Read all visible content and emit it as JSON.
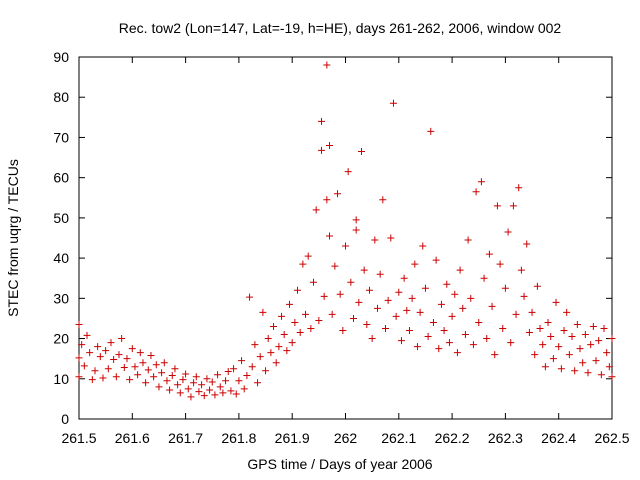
{
  "chart_data": {
    "type": "scatter",
    "title": "Rec. tow2 (Lon=147, Lat=-19, h=HE), days 261-262, 2006, window 002",
    "xlabel": "GPS time / Days of year 2006",
    "ylabel": "STEC from uqrg / TECUs",
    "xlim": [
      261.5,
      262.5
    ],
    "ylim": [
      0,
      90
    ],
    "xticks": [
      "261.5",
      "261.6",
      "261.7",
      "261.8",
      "261.9",
      "262",
      "262.1",
      "262.2",
      "262.3",
      "262.4",
      "262.5"
    ],
    "yticks": [
      "0",
      "10",
      "20",
      "30",
      "40",
      "50",
      "60",
      "70",
      "80",
      "90"
    ],
    "marker": "+",
    "marker_color": "#cc0000",
    "grid": false,
    "series": [
      {
        "points": [
          [
            261.5,
            23.5
          ],
          [
            261.5,
            15.2
          ],
          [
            261.5,
            10.5
          ],
          [
            261.505,
            18.5
          ],
          [
            261.51,
            13.2
          ],
          [
            261.515,
            20.8
          ],
          [
            261.52,
            16.5
          ],
          [
            261.525,
            9.8
          ],
          [
            261.53,
            12.0
          ],
          [
            261.535,
            18.0
          ],
          [
            261.54,
            15.5
          ],
          [
            261.545,
            10.2
          ],
          [
            261.55,
            17.0
          ],
          [
            261.555,
            12.5
          ],
          [
            261.56,
            19.0
          ],
          [
            261.565,
            14.8
          ],
          [
            261.57,
            10.5
          ],
          [
            261.575,
            16.0
          ],
          [
            261.58,
            20.0
          ],
          [
            261.585,
            12.8
          ],
          [
            261.59,
            15.0
          ],
          [
            261.595,
            9.8
          ],
          [
            261.6,
            17.5
          ],
          [
            261.605,
            13.0
          ],
          [
            261.61,
            11.0
          ],
          [
            261.615,
            16.5
          ],
          [
            261.62,
            14.0
          ],
          [
            261.625,
            9.0
          ],
          [
            261.63,
            12.2
          ],
          [
            261.635,
            15.8
          ],
          [
            261.64,
            10.5
          ],
          [
            261.645,
            13.5
          ],
          [
            261.65,
            8.0
          ],
          [
            261.655,
            11.5
          ],
          [
            261.66,
            14.0
          ],
          [
            261.665,
            9.5
          ],
          [
            261.67,
            7.2
          ],
          [
            261.675,
            10.8
          ],
          [
            261.68,
            12.5
          ],
          [
            261.685,
            8.5
          ],
          [
            261.69,
            6.5
          ],
          [
            261.695,
            9.8
          ],
          [
            261.7,
            11.2
          ],
          [
            261.705,
            7.5
          ],
          [
            261.71,
            5.5
          ],
          [
            261.715,
            9.0
          ],
          [
            261.72,
            10.5
          ],
          [
            261.725,
            6.8
          ],
          [
            261.73,
            8.5
          ],
          [
            261.735,
            5.8
          ],
          [
            261.74,
            10.0
          ],
          [
            261.745,
            7.2
          ],
          [
            261.75,
            9.2
          ],
          [
            261.755,
            6.0
          ],
          [
            261.76,
            11.0
          ],
          [
            261.765,
            8.0
          ],
          [
            261.77,
            6.5
          ],
          [
            261.775,
            9.5
          ],
          [
            261.78,
            11.8
          ],
          [
            261.785,
            7.0
          ],
          [
            261.79,
            12.5
          ],
          [
            261.795,
            6.2
          ],
          [
            261.8,
            9.5
          ],
          [
            261.805,
            14.5
          ],
          [
            261.81,
            7.5
          ],
          [
            261.815,
            10.8
          ],
          [
            261.82,
            30.3
          ],
          [
            261.825,
            13.0
          ],
          [
            261.83,
            18.5
          ],
          [
            261.835,
            9.0
          ],
          [
            261.84,
            15.5
          ],
          [
            261.845,
            26.5
          ],
          [
            261.85,
            12.0
          ],
          [
            261.855,
            20.0
          ],
          [
            261.86,
            16.5
          ],
          [
            261.865,
            23.0
          ],
          [
            261.87,
            14.0
          ],
          [
            261.875,
            18.0
          ],
          [
            261.88,
            25.5
          ],
          [
            261.885,
            21.0
          ],
          [
            261.89,
            17.0
          ],
          [
            261.895,
            28.5
          ],
          [
            261.9,
            19.0
          ],
          [
            261.905,
            24.0
          ],
          [
            261.91,
            32.0
          ],
          [
            261.915,
            21.5
          ],
          [
            261.92,
            38.5
          ],
          [
            261.925,
            26.0
          ],
          [
            261.93,
            40.5
          ],
          [
            261.935,
            22.5
          ],
          [
            261.94,
            34.0
          ],
          [
            261.945,
            52.0
          ],
          [
            261.95,
            24.5
          ],
          [
            261.955,
            74.0
          ],
          [
            261.955,
            66.8
          ],
          [
            261.96,
            30.5
          ],
          [
            261.965,
            54.5
          ],
          [
            261.965,
            88.0
          ],
          [
            261.97,
            45.5
          ],
          [
            261.97,
            68.0
          ],
          [
            261.975,
            26.0
          ],
          [
            261.98,
            38.0
          ],
          [
            261.985,
            56.0
          ],
          [
            261.99,
            31.0
          ],
          [
            261.995,
            22.0
          ],
          [
            262.0,
            43.0
          ],
          [
            262.005,
            61.5
          ],
          [
            262.01,
            34.0
          ],
          [
            262.015,
            25.0
          ],
          [
            262.02,
            49.5
          ],
          [
            262.02,
            47.0
          ],
          [
            262.025,
            29.0
          ],
          [
            262.03,
            66.5
          ],
          [
            262.035,
            37.0
          ],
          [
            262.04,
            23.5
          ],
          [
            262.045,
            32.0
          ],
          [
            262.05,
            20.0
          ],
          [
            262.055,
            44.5
          ],
          [
            262.06,
            27.5
          ],
          [
            262.065,
            36.0
          ],
          [
            262.07,
            54.5
          ],
          [
            262.075,
            22.5
          ],
          [
            262.08,
            29.5
          ],
          [
            262.085,
            45.0
          ],
          [
            262.09,
            78.5
          ],
          [
            262.095,
            25.5
          ],
          [
            262.1,
            31.5
          ],
          [
            262.105,
            19.5
          ],
          [
            262.11,
            35.0
          ],
          [
            262.115,
            27.0
          ],
          [
            262.12,
            22.0
          ],
          [
            262.125,
            30.0
          ],
          [
            262.13,
            38.5
          ],
          [
            262.135,
            18.0
          ],
          [
            262.14,
            26.5
          ],
          [
            262.145,
            43.0
          ],
          [
            262.15,
            32.5
          ],
          [
            262.155,
            20.5
          ],
          [
            262.16,
            71.5
          ],
          [
            262.165,
            24.0
          ],
          [
            262.17,
            39.5
          ],
          [
            262.175,
            17.5
          ],
          [
            262.18,
            28.5
          ],
          [
            262.185,
            22.0
          ],
          [
            262.19,
            33.5
          ],
          [
            262.195,
            19.0
          ],
          [
            262.2,
            25.5
          ],
          [
            262.205,
            31.0
          ],
          [
            262.21,
            16.5
          ],
          [
            262.215,
            37.0
          ],
          [
            262.22,
            27.5
          ],
          [
            262.225,
            21.0
          ],
          [
            262.23,
            44.5
          ],
          [
            262.235,
            30.0
          ],
          [
            262.24,
            18.5
          ],
          [
            262.245,
            56.5
          ],
          [
            262.25,
            24.0
          ],
          [
            262.255,
            59.0
          ],
          [
            262.26,
            35.0
          ],
          [
            262.265,
            20.0
          ],
          [
            262.27,
            41.0
          ],
          [
            262.275,
            28.0
          ],
          [
            262.28,
            16.0
          ],
          [
            262.285,
            53.0
          ],
          [
            262.29,
            38.5
          ],
          [
            262.295,
            22.5
          ],
          [
            262.3,
            32.5
          ],
          [
            262.305,
            46.5
          ],
          [
            262.31,
            19.0
          ],
          [
            262.315,
            53.0
          ],
          [
            262.32,
            26.0
          ],
          [
            262.325,
            57.5
          ],
          [
            262.33,
            37.0
          ],
          [
            262.335,
            30.5
          ],
          [
            262.34,
            43.5
          ],
          [
            262.345,
            21.5
          ],
          [
            262.35,
            26.5
          ],
          [
            262.355,
            16.0
          ],
          [
            262.36,
            33.0
          ],
          [
            262.365,
            22.5
          ],
          [
            262.37,
            18.5
          ],
          [
            262.375,
            13.0
          ],
          [
            262.38,
            24.0
          ],
          [
            262.385,
            20.5
          ],
          [
            262.39,
            15.0
          ],
          [
            262.395,
            29.0
          ],
          [
            262.4,
            18.0
          ],
          [
            262.405,
            12.5
          ],
          [
            262.41,
            22.0
          ],
          [
            262.415,
            26.5
          ],
          [
            262.42,
            16.0
          ],
          [
            262.425,
            20.5
          ],
          [
            262.43,
            12.0
          ],
          [
            262.435,
            23.5
          ],
          [
            262.44,
            17.5
          ],
          [
            262.445,
            14.0
          ],
          [
            262.45,
            21.0
          ],
          [
            262.455,
            11.5
          ],
          [
            262.46,
            18.5
          ],
          [
            262.465,
            23.0
          ],
          [
            262.47,
            14.5
          ],
          [
            262.475,
            19.5
          ],
          [
            262.48,
            11.0
          ],
          [
            262.485,
            22.5
          ],
          [
            262.49,
            16.5
          ],
          [
            262.495,
            13.0
          ],
          [
            262.5,
            20.0
          ],
          [
            262.5,
            10.5
          ]
        ]
      }
    ]
  }
}
